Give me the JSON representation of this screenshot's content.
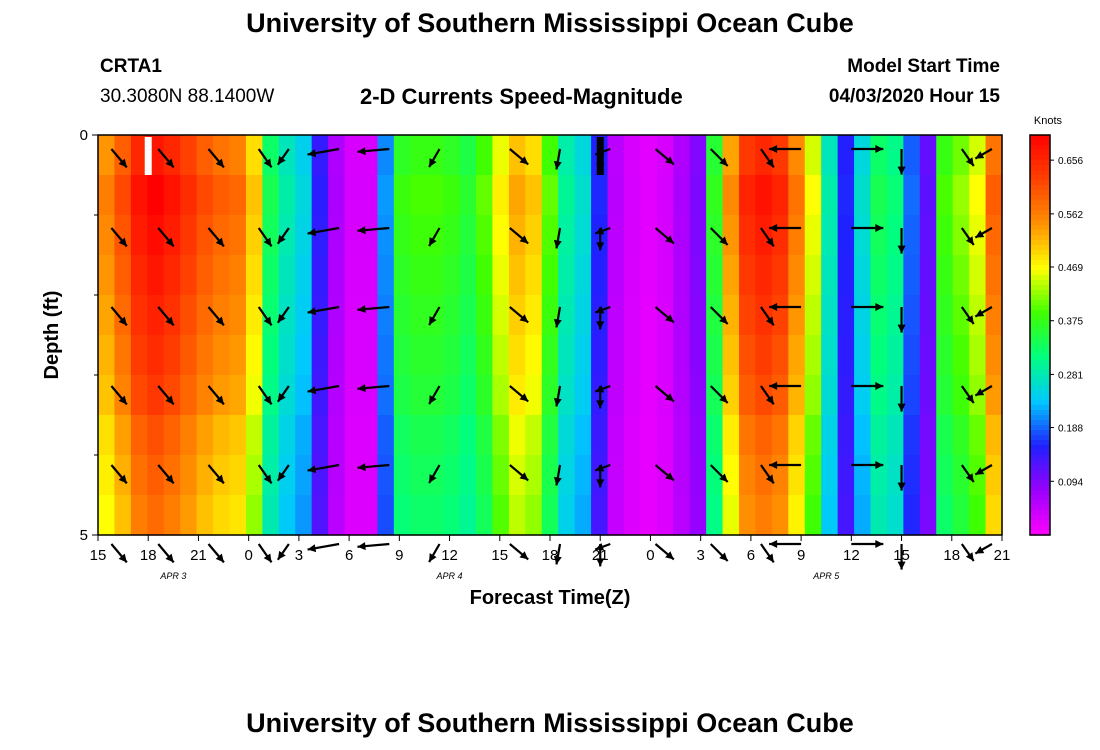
{
  "title": "University of Southern Mississippi Ocean Cube",
  "footer_title": "University of Southern Mississippi Ocean Cube",
  "station": "CRTA1",
  "coordinates": "30.3080N 88.1400W",
  "subtitle": "2-D Currents Speed-Magnitude",
  "model_start_label": "Model Start Time",
  "model_start_value": "04/03/2020 Hour 15",
  "chart_data": {
    "type": "heatmap",
    "title": "2-D Currents Speed-Magnitude",
    "xlabel": "Forecast Time(Z)",
    "ylabel": "Depth (ft)",
    "x_tick_labels": [
      "15",
      "18",
      "21",
      "0",
      "3",
      "6",
      "9",
      "12",
      "15",
      "18",
      "21",
      "0",
      "3",
      "6",
      "9",
      "12",
      "15",
      "18",
      "21"
    ],
    "x_hours": [
      0,
      54
    ],
    "y_tick_labels": [
      "0",
      "5"
    ],
    "ylim": [
      0,
      5
    ],
    "date_labels": [
      {
        "text": "APR 3",
        "hour": 4.5
      },
      {
        "text": "APR 4",
        "hour": 21
      },
      {
        "text": "APR 5",
        "hour": 43.5
      }
    ],
    "colorbar": {
      "unit": "Knots",
      "tick_labels": [
        "0.656",
        "0.562",
        "0.469",
        "0.375",
        "0.281",
        "0.188",
        "0.094"
      ],
      "tick_values": [
        0.656,
        0.562,
        0.469,
        0.375,
        0.281,
        0.188,
        0.094
      ],
      "range": [
        0,
        0.7
      ],
      "colors": [
        "#ff00ff",
        "#9900ff",
        "#2020ff",
        "#00c8ff",
        "#00ff80",
        "#40ff00",
        "#ffff00",
        "#ff9000",
        "#ff4000",
        "#ff0000"
      ]
    },
    "speed_by_hour": [
      0.53,
      0.58,
      0.64,
      0.66,
      0.64,
      0.61,
      0.58,
      0.56,
      0.55,
      0.48,
      0.32,
      0.27,
      0.24,
      0.14,
      0.06,
      0.03,
      0.03,
      0.2,
      0.36,
      0.37,
      0.37,
      0.36,
      0.34,
      0.38,
      0.45,
      0.5,
      0.48,
      0.38,
      0.28,
      0.25,
      0.15,
      0.05,
      0.03,
      0.02,
      0.03,
      0.06,
      0.09,
      0.35,
      0.52,
      0.62,
      0.64,
      0.62,
      0.54,
      0.44,
      0.27,
      0.15,
      0.25,
      0.32,
      0.3,
      0.18,
      0.11,
      0.37,
      0.4,
      0.44,
      0.56
    ],
    "depth_variation": [
      1.02,
      1.06,
      1.04,
      1.02,
      1.0,
      0.98,
      0.96,
      0.92,
      0.9,
      0.88
    ],
    "arrows": [
      {
        "hour": 0.8,
        "dir": 140,
        "len": 0.75
      },
      {
        "hour": 3.6,
        "dir": 140,
        "len": 0.75
      },
      {
        "hour": 6.6,
        "dir": 140,
        "len": 0.75
      },
      {
        "hour": 9.6,
        "dir": 145,
        "len": 0.7
      },
      {
        "hour": 11.4,
        "dir": 215,
        "len": 0.6
      },
      {
        "hour": 14.4,
        "dir": 260,
        "len": 1.0
      },
      {
        "hour": 17.4,
        "dir": 265,
        "len": 1.0
      },
      {
        "hour": 20.4,
        "dir": 210,
        "len": 0.65
      },
      {
        "hour": 24.6,
        "dir": 130,
        "len": 0.75
      },
      {
        "hour": 27.6,
        "dir": 190,
        "len": 0.65
      },
      {
        "hour": 30.0,
        "dir": 180,
        "len": 0.7
      },
      {
        "hour": 30.6,
        "dir": 250,
        "len": 0.5
      },
      {
        "hour": 33.3,
        "dir": 130,
        "len": 0.75
      },
      {
        "hour": 36.6,
        "dir": 135,
        "len": 0.75
      },
      {
        "hour": 39.6,
        "dir": 145,
        "len": 0.7
      },
      {
        "hour": 42.0,
        "dir": 270,
        "len": 1.0
      },
      {
        "hour": 45.0,
        "dir": 90,
        "len": 1.0
      },
      {
        "hour": 48.0,
        "dir": 180,
        "len": 0.8
      },
      {
        "hour": 51.6,
        "dir": 145,
        "len": 0.65
      },
      {
        "hour": 53.4,
        "dir": 240,
        "len": 0.6
      }
    ],
    "marks": [
      {
        "hour": 3.0,
        "color": "#ffffff"
      },
      {
        "hour": 30.0,
        "color": "#000000"
      }
    ]
  }
}
